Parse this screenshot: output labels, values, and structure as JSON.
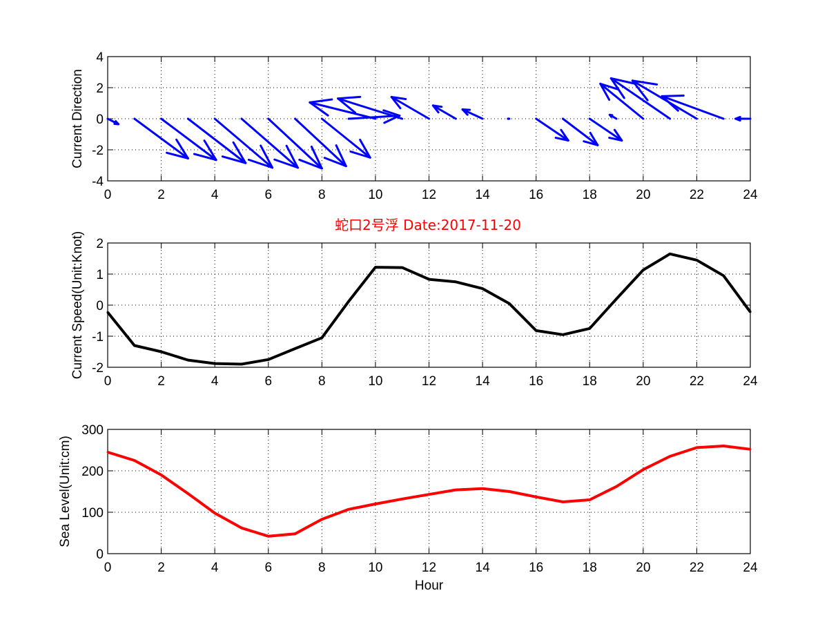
{
  "title": "蛇口2号浮   Date:2017-11-20",
  "colors": {
    "vectors": "#0000ff",
    "speed": "#000000",
    "sea_level": "#ff0000",
    "title": "#ff0000"
  },
  "chart_data": [
    {
      "id": "direction",
      "type": "quiver",
      "ylabel": "Current Direction",
      "xlim": [
        0,
        24
      ],
      "ylim": [
        -4,
        4
      ],
      "xticks": [
        0,
        2,
        4,
        6,
        8,
        10,
        12,
        14,
        16,
        18,
        20,
        22,
        24
      ],
      "yticks": [
        -4,
        -2,
        0,
        2,
        4
      ],
      "grid": true,
      "x": [
        0,
        1,
        2,
        3,
        4,
        5,
        6,
        7,
        8,
        9,
        10,
        11,
        12,
        13,
        14,
        15,
        16,
        17,
        18,
        19,
        20,
        21,
        22,
        23,
        24
      ],
      "u": [
        0.4,
        2.0,
        2.05,
        2.15,
        2.15,
        2.1,
        2.0,
        1.9,
        1.8,
        1.9,
        -2.45,
        -2.4,
        -1.4,
        -0.85,
        -0.75,
        -0.05,
        1.2,
        1.3,
        1.2,
        -0.25,
        -1.6,
        -2.2,
        -2.4,
        -2.3,
        -0.55
      ],
      "v": [
        -0.35,
        -2.55,
        -2.65,
        -2.85,
        -3.15,
        -3.15,
        -3.2,
        -3.05,
        -2.5,
        0.2,
        1.05,
        1.3,
        1.4,
        0.85,
        0.6,
        0.0,
        -1.4,
        -1.7,
        -1.4,
        0.25,
        2.25,
        2.6,
        2.45,
        1.45,
        0.0
      ]
    },
    {
      "id": "speed",
      "type": "line",
      "ylabel": "Current Speed(Unit:Knot)",
      "xlim": [
        0,
        24
      ],
      "ylim": [
        -2,
        2
      ],
      "xticks": [
        0,
        2,
        4,
        6,
        8,
        10,
        12,
        14,
        16,
        18,
        20,
        22,
        24
      ],
      "yticks": [
        -2,
        -1,
        0,
        1,
        2
      ],
      "grid": true,
      "x": [
        0,
        1,
        2,
        3,
        4,
        5,
        6,
        7,
        8,
        9,
        10,
        11,
        12,
        13,
        14,
        15,
        16,
        17,
        18,
        19,
        20,
        21,
        22,
        23,
        24
      ],
      "y": [
        -0.23,
        -1.3,
        -1.5,
        -1.77,
        -1.88,
        -1.9,
        -1.75,
        -1.4,
        -1.05,
        0.12,
        1.22,
        1.21,
        0.83,
        0.75,
        0.53,
        0.05,
        -0.82,
        -0.95,
        -0.75,
        0.2,
        1.13,
        1.65,
        1.45,
        0.95,
        -0.22
      ]
    },
    {
      "id": "sea_level",
      "type": "line",
      "ylabel": "Sea Level(Unit:cm)",
      "xlabel": "Hour",
      "xlim": [
        0,
        24
      ],
      "ylim": [
        0,
        300
      ],
      "xticks": [
        0,
        2,
        4,
        6,
        8,
        10,
        12,
        14,
        16,
        18,
        20,
        22,
        24
      ],
      "yticks": [
        0,
        100,
        200,
        300
      ],
      "grid": true,
      "x": [
        0,
        1,
        2,
        3,
        4,
        5,
        6,
        7,
        8,
        9,
        10,
        11,
        12,
        13,
        14,
        15,
        16,
        17,
        18,
        19,
        20,
        21,
        22,
        23,
        24
      ],
      "y": [
        245,
        225,
        190,
        145,
        98,
        62,
        42,
        48,
        83,
        107,
        120,
        132,
        143,
        154,
        157,
        150,
        137,
        125,
        130,
        162,
        203,
        235,
        256,
        260,
        252
      ]
    }
  ]
}
